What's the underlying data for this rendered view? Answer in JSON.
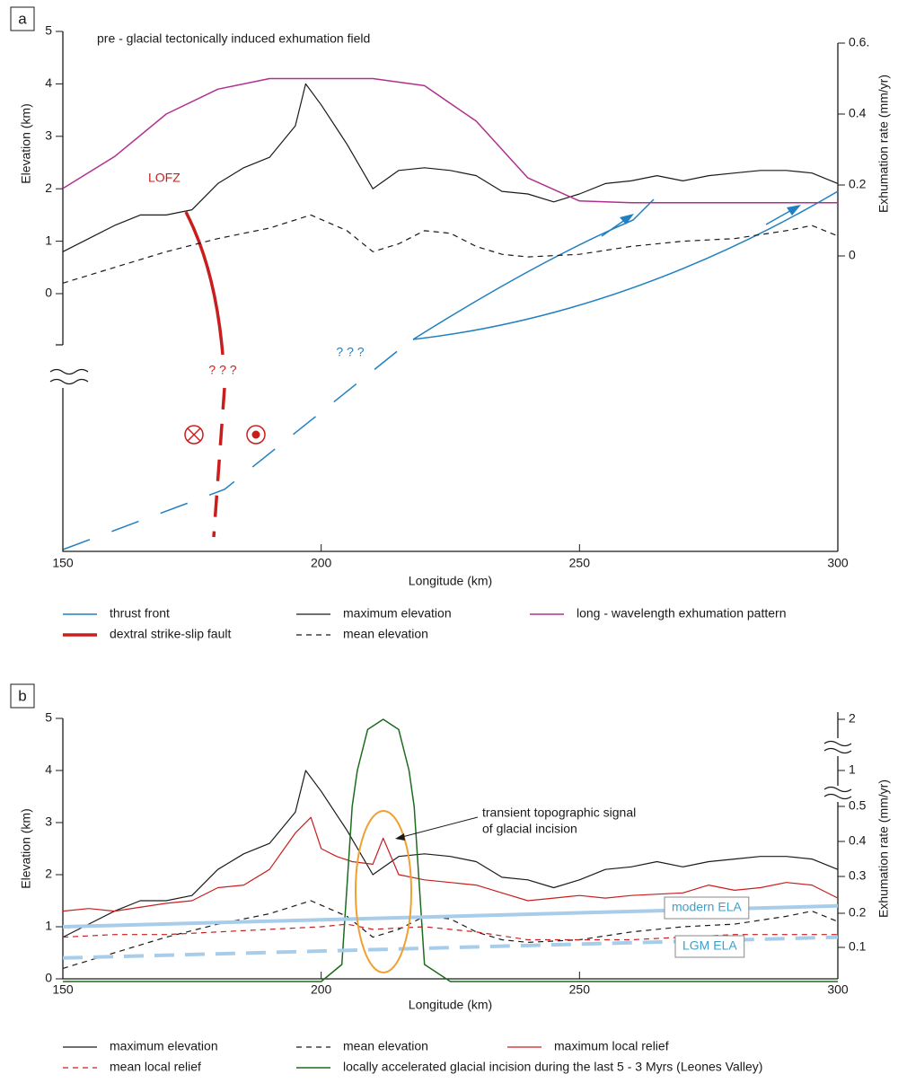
{
  "chart_data": [
    {
      "type": "line",
      "panel": "a",
      "xlabel": "Longitude (km)",
      "ylabel": "Elevation (km)",
      "y2label": "Exhumation rate (mm/yr)",
      "xlim": [
        150,
        300
      ],
      "xticks": [
        150,
        200,
        250,
        300
      ],
      "ylim": [
        0,
        5
      ],
      "yticks": [
        0,
        1,
        2,
        3,
        4,
        5
      ],
      "y2lim": [
        0,
        0.6
      ],
      "y2ticks": [
        0,
        0.2,
        0.4,
        {
          "value": 0.6,
          "label": "0.6."
        }
      ],
      "annotations": [
        {
          "text": "pre - glacial tectonically induced exhumation field",
          "color": "#1a1a1a"
        },
        {
          "text": "LOFZ",
          "color": "#c81e1e"
        },
        {
          "text": "? ? ?",
          "color": "#c81e1e"
        },
        {
          "text": "? ? ?",
          "color": "#2080c0"
        }
      ],
      "features": [
        {
          "name": "thrust front",
          "color": "#2080c0",
          "width": 1.5
        },
        {
          "name": "dextral strike-slip fault",
          "color": "#c81e1e",
          "width": 3.5
        }
      ],
      "series": [
        {
          "name": "maximum elevation",
          "color": "#1a1a1a",
          "dash": "solid",
          "width": 1.2,
          "x": [
            150,
            155,
            160,
            165,
            170,
            175,
            180,
            185,
            190,
            195,
            197,
            200,
            205,
            210,
            215,
            220,
            225,
            230,
            235,
            240,
            245,
            250,
            255,
            260,
            265,
            270,
            275,
            280,
            285,
            290,
            295,
            300
          ],
          "values": [
            0.8,
            1.05,
            1.3,
            1.5,
            1.5,
            1.6,
            2.1,
            2.4,
            2.6,
            3.2,
            4.0,
            3.6,
            2.85,
            2.0,
            2.35,
            2.4,
            2.35,
            2.25,
            1.95,
            1.9,
            1.75,
            1.9,
            2.1,
            2.15,
            2.25,
            2.15,
            2.25,
            2.3,
            2.35,
            2.35,
            2.3,
            2.1
          ]
        },
        {
          "name": "mean elevation",
          "color": "#1a1a1a",
          "dash": "dashed",
          "width": 1.2,
          "x": [
            150,
            160,
            170,
            180,
            190,
            198,
            205,
            210,
            215,
            220,
            225,
            230,
            235,
            240,
            250,
            260,
            270,
            280,
            290,
            295,
            300
          ],
          "values": [
            0.2,
            0.5,
            0.8,
            1.05,
            1.25,
            1.5,
            1.2,
            0.8,
            0.95,
            1.2,
            1.15,
            0.9,
            0.75,
            0.7,
            0.75,
            0.9,
            1.0,
            1.05,
            1.2,
            1.3,
            1.1
          ]
        },
        {
          "name": "long - wavelength exhumation pattern",
          "color": "#b0308f",
          "dash": "solid",
          "width": 1.5,
          "axis": "y2",
          "x": [
            150,
            160,
            170,
            180,
            190,
            200,
            210,
            220,
            230,
            240,
            250,
            260,
            270,
            280,
            290,
            300
          ],
          "values": [
            0.19,
            0.28,
            0.4,
            0.47,
            0.5,
            0.5,
            0.5,
            0.48,
            0.38,
            0.22,
            0.155,
            0.15,
            0.15,
            0.15,
            0.15,
            0.15
          ]
        }
      ]
    },
    {
      "type": "line",
      "panel": "b",
      "xlabel": "Longitude (km)",
      "ylabel": "Elevation (km)",
      "y2label": "Exhumation rate (mm/yr)",
      "xlim": [
        150,
        300
      ],
      "xticks": [
        150,
        200,
        250,
        300
      ],
      "ylim": [
        0,
        5
      ],
      "yticks": [
        0,
        1,
        2,
        3,
        4,
        5
      ],
      "y2lim": [
        0,
        2
      ],
      "y2ticks": [
        0.1,
        0.2,
        0.3,
        0.4,
        0.5,
        1,
        2
      ],
      "annotations": [
        {
          "text": "transient topographic signal",
          "color": "#1a1a1a"
        },
        {
          "text": "of glacial incision",
          "color": "#1a1a1a"
        }
      ],
      "series": [
        {
          "name": "maximum elevation",
          "color": "#1a1a1a",
          "dash": "solid",
          "width": 1.2,
          "x": [
            150,
            155,
            160,
            165,
            170,
            175,
            180,
            185,
            190,
            195,
            197,
            200,
            205,
            210,
            215,
            220,
            225,
            230,
            235,
            240,
            245,
            250,
            255,
            260,
            265,
            270,
            275,
            280,
            285,
            290,
            295,
            300
          ],
          "values": [
            0.8,
            1.05,
            1.3,
            1.5,
            1.5,
            1.6,
            2.1,
            2.4,
            2.6,
            3.2,
            4.0,
            3.6,
            2.85,
            2.0,
            2.35,
            2.4,
            2.35,
            2.25,
            1.95,
            1.9,
            1.75,
            1.9,
            2.1,
            2.15,
            2.25,
            2.15,
            2.25,
            2.3,
            2.35,
            2.35,
            2.3,
            2.1
          ]
        },
        {
          "name": "mean elevation",
          "color": "#1a1a1a",
          "dash": "dashed",
          "width": 1.2,
          "x": [
            150,
            160,
            170,
            180,
            190,
            198,
            205,
            210,
            215,
            220,
            225,
            230,
            235,
            240,
            250,
            260,
            270,
            280,
            290,
            295,
            300
          ],
          "values": [
            0.2,
            0.5,
            0.8,
            1.05,
            1.25,
            1.5,
            1.2,
            0.8,
            0.95,
            1.2,
            1.15,
            0.9,
            0.75,
            0.7,
            0.75,
            0.9,
            1.0,
            1.05,
            1.2,
            1.3,
            1.1
          ]
        },
        {
          "name": "maximum local relief",
          "color": "#c81e1e",
          "dash": "solid",
          "width": 1.2,
          "x": [
            150,
            155,
            160,
            170,
            175,
            180,
            185,
            190,
            195,
            198,
            200,
            203,
            206,
            210,
            212,
            215,
            220,
            225,
            230,
            235,
            240,
            245,
            250,
            255,
            260,
            270,
            275,
            280,
            285,
            290,
            295,
            300
          ],
          "values": [
            1.3,
            1.35,
            1.3,
            1.45,
            1.5,
            1.75,
            1.8,
            2.1,
            2.8,
            3.1,
            2.5,
            2.35,
            2.25,
            2.2,
            2.7,
            2.0,
            1.9,
            1.85,
            1.8,
            1.65,
            1.5,
            1.55,
            1.6,
            1.55,
            1.6,
            1.65,
            1.8,
            1.7,
            1.75,
            1.85,
            1.8,
            1.55
          ]
        },
        {
          "name": "mean local relief",
          "color": "#c81e1e",
          "dash": "dashed",
          "width": 1.2,
          "x": [
            150,
            160,
            170,
            180,
            190,
            200,
            205,
            210,
            220,
            230,
            240,
            250,
            260,
            270,
            280,
            290,
            300
          ],
          "values": [
            0.8,
            0.85,
            0.85,
            0.9,
            0.95,
            1.0,
            1.05,
            0.95,
            1.0,
            0.9,
            0.75,
            0.75,
            0.75,
            0.8,
            0.85,
            0.85,
            0.85
          ]
        },
        {
          "name": "locally accelerated glacial incision during the last 5 - 3 Myrs (Leones Valley)",
          "color": "#1e6b1e",
          "dash": "solid",
          "width": 1.5,
          "axis": "y2",
          "x": [
            150,
            200,
            204,
            206,
            207,
            209,
            212,
            215,
            217,
            218,
            220,
            225,
            300
          ],
          "values": [
            0,
            0,
            0.05,
            0.5,
            1,
            1.8,
            2,
            1.8,
            1,
            0.5,
            0.05,
            0,
            0
          ]
        },
        {
          "name": "modern ELA",
          "color": "#a8cdea",
          "dash": "solid",
          "width": 4,
          "label_color": "#3aa0d0",
          "x": [
            150,
            300
          ],
          "values": [
            1.0,
            1.4
          ]
        },
        {
          "name": "LGM ELA",
          "color": "#a8cdea",
          "dash": "dashed",
          "width": 4,
          "label_color": "#3aa0d0",
          "x": [
            150,
            300
          ],
          "values": [
            0.4,
            0.8
          ]
        }
      ]
    }
  ]
}
